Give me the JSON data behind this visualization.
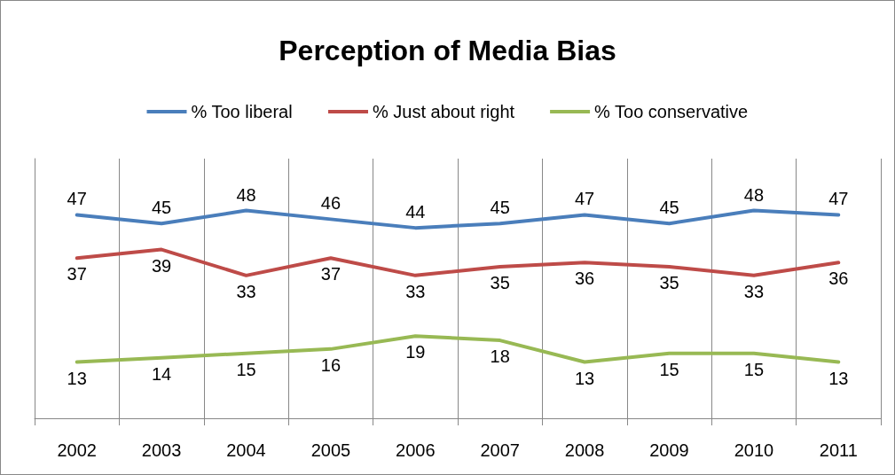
{
  "chart_data": {
    "type": "line",
    "title": "Perception of Media Bias",
    "categories": [
      "2002",
      "2003",
      "2004",
      "2005",
      "2006",
      "2007",
      "2008",
      "2009",
      "2010",
      "2011"
    ],
    "series": [
      {
        "name": "% Too liberal",
        "color": "#4a7ebb",
        "values": [
          47,
          45,
          48,
          46,
          44,
          45,
          47,
          45,
          48,
          47
        ]
      },
      {
        "name": "% Just about right",
        "color": "#be4b48",
        "values": [
          37,
          39,
          33,
          37,
          33,
          35,
          36,
          35,
          33,
          36
        ]
      },
      {
        "name": "% Too conservative",
        "color": "#98b954",
        "values": [
          13,
          14,
          15,
          16,
          19,
          18,
          13,
          15,
          15,
          13
        ]
      }
    ],
    "ylim": [
      0,
      60
    ],
    "data_labels": true,
    "grid": "x",
    "legend": "top",
    "marker": "none",
    "line_style": "solid",
    "tick_labels": "x"
  }
}
